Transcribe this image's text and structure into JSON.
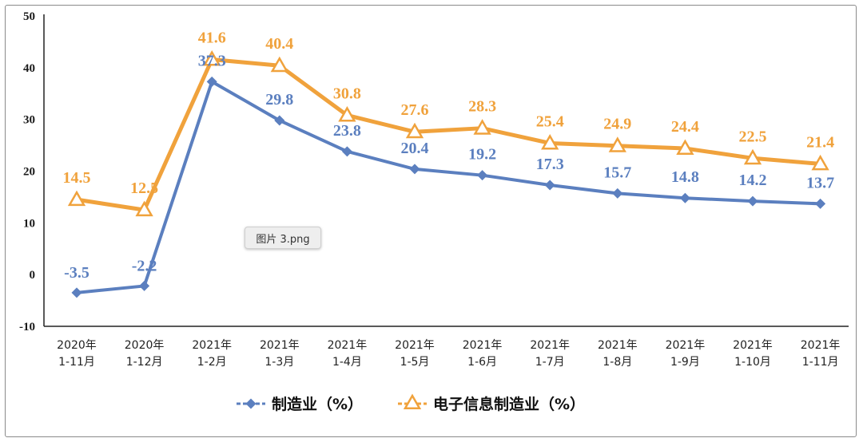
{
  "tooltip_text": "图片 3.png",
  "chart_data": {
    "type": "line",
    "categories": [
      [
        "2020年",
        "1-11月"
      ],
      [
        "2020年",
        "1-12月"
      ],
      [
        "2021年",
        "1-2月"
      ],
      [
        "2021年",
        "1-3月"
      ],
      [
        "2021年",
        "1-4月"
      ],
      [
        "2021年",
        "1-5月"
      ],
      [
        "2021年",
        "1-6月"
      ],
      [
        "2021年",
        "1-7月"
      ],
      [
        "2021年",
        "1-8月"
      ],
      [
        "2021年",
        "1-9月"
      ],
      [
        "2021年",
        "1-10月"
      ],
      [
        "2021年",
        "1-11月"
      ]
    ],
    "ylim": [
      -10,
      50
    ],
    "yticks": [
      -10,
      0,
      10,
      20,
      30,
      40,
      50
    ],
    "legend_position": "bottom",
    "series": [
      {
        "name": "制造业（%）",
        "color": "#5b7fbf",
        "marker": "diamond",
        "values": [
          -3.5,
          -2.2,
          37.3,
          29.8,
          23.8,
          20.4,
          19.2,
          17.3,
          15.7,
          14.8,
          14.2,
          13.7
        ]
      },
      {
        "name": "电子信息制造业（%）",
        "color": "#f0a23c",
        "marker": "triangle",
        "values": [
          14.5,
          12.5,
          41.6,
          40.4,
          30.8,
          27.6,
          28.3,
          25.4,
          24.9,
          24.4,
          22.5,
          21.4
        ]
      }
    ]
  }
}
